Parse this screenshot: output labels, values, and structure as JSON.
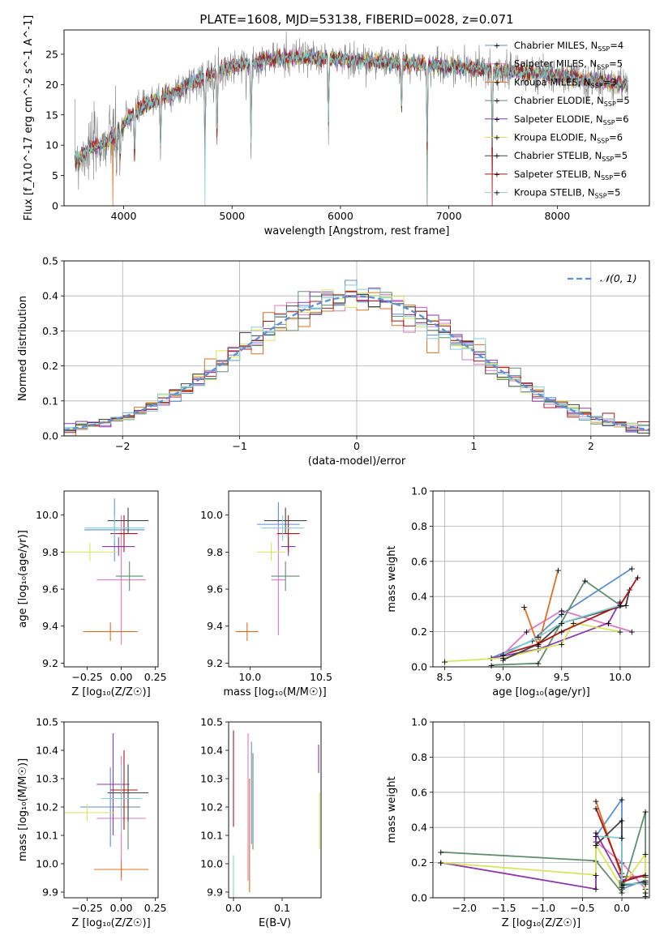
{
  "figure": {
    "title": "PLATE=1608, MJD=53138, FIBERID=0028, z=0.071"
  },
  "colors": {
    "Chabrier MILES": "#5b8fd9",
    "Salpeter MILES": "#e377c2",
    "Kroupa MILES": "#e07020",
    "Chabrier ELODIE": "#5f8f6a",
    "Salpeter ELODIE": "#8e35b0",
    "Kroupa ELODIE": "#d6e85a",
    "Chabrier STELIB": "#444444",
    "Salpeter STELIB": "#b01515",
    "Kroupa STELIB": "#80d0d8",
    "data": "#808080",
    "grid": "#b0b0b0",
    "normal": "#5b8fd9"
  },
  "chart_data": [
    {
      "id": "spectrum",
      "type": "line",
      "xlabel": "wavelength [Angstrom, rest frame]",
      "ylabel": "Flux [f_λ10^-17 erg cm^-2 s^-1 A^-1]",
      "xlim": [
        3450,
        8850
      ],
      "ylim": [
        0,
        29
      ],
      "xticks": [
        4000,
        5000,
        6000,
        7000,
        8000
      ],
      "yticks": [
        0,
        5,
        10,
        15,
        20,
        25
      ],
      "grid": false,
      "legend_position": "right",
      "continuum": [
        [
          3550,
          7.5
        ],
        [
          3700,
          9.5
        ],
        [
          3850,
          10.5
        ],
        [
          3950,
          12.5
        ],
        [
          4100,
          15.5
        ],
        [
          4300,
          17.5
        ],
        [
          4500,
          19
        ],
        [
          4700,
          21
        ],
        [
          5000,
          23
        ],
        [
          5300,
          24
        ],
        [
          5600,
          24.5
        ],
        [
          6000,
          24.2
        ],
        [
          6300,
          23.8
        ],
        [
          6600,
          23.5
        ],
        [
          7000,
          23
        ],
        [
          7500,
          22.2
        ],
        [
          8000,
          21.5
        ],
        [
          8400,
          20.5
        ],
        [
          8650,
          20
        ]
      ],
      "absorption": [
        [
          3934,
          10
        ],
        [
          3968,
          10
        ],
        [
          4101,
          13
        ],
        [
          4340,
          14
        ],
        [
          4750,
          21
        ],
        [
          4861,
          20
        ],
        [
          5175,
          22
        ],
        [
          5890,
          18
        ],
        [
          6563,
          14
        ],
        [
          6800,
          24
        ],
        [
          7400,
          23
        ]
      ],
      "series": [
        {
          "name": "Chabrier MILES",
          "nssp": "4"
        },
        {
          "name": "Salpeter MILES",
          "nssp": "5"
        },
        {
          "name": "Kroupa MILES",
          "nssp": "3"
        },
        {
          "name": "Chabrier ELODIE",
          "nssp": "5"
        },
        {
          "name": "Salpeter ELODIE",
          "nssp": "6"
        },
        {
          "name": "Kroupa ELODIE",
          "nssp": "6"
        },
        {
          "name": "Chabrier STELIB",
          "nssp": "5"
        },
        {
          "name": "Salpeter STELIB",
          "nssp": "6"
        },
        {
          "name": "Kroupa STELIB",
          "nssp": "5"
        }
      ]
    },
    {
      "id": "residuals",
      "type": "histogram",
      "xlabel": "(data-model)/error",
      "ylabel": "Normed distribution",
      "xlim": [
        -2.5,
        2.5
      ],
      "ylim": [
        0,
        0.5
      ],
      "xticks": [
        -2,
        -1,
        0,
        1,
        2
      ],
      "yticks": [
        0.0,
        0.1,
        0.2,
        0.3,
        0.4,
        0.5
      ],
      "grid": true,
      "legend_position": "top-right",
      "legend_label": "𝒩(0, 1)",
      "bin_width": 0.1
    },
    {
      "id": "age_vs_Z",
      "type": "errorbar",
      "xlabel": "Z [log₁₀(Z/Z☉)]",
      "ylabel": "age  [log₁₀(age/yr)]",
      "xlim": [
        -0.42,
        0.27
      ],
      "ylim": [
        9.18,
        10.13
      ],
      "xticks": [
        -0.25,
        0.0,
        0.25
      ],
      "yticks": [
        9.2,
        9.4,
        9.6,
        9.8,
        10.0
      ],
      "grid": false,
      "points": [
        {
          "model": "Chabrier MILES",
          "x": -0.05,
          "xerr": 0.22,
          "y": 9.92,
          "yerr": 0.17
        },
        {
          "model": "Salpeter MILES",
          "x": 0.0,
          "xerr": 0.18,
          "y": 9.65,
          "yerr": 0.35
        },
        {
          "model": "Kroupa MILES",
          "x": -0.08,
          "xerr": 0.2,
          "y": 9.37,
          "yerr": 0.05
        },
        {
          "model": "Chabrier ELODIE",
          "x": 0.06,
          "xerr": 0.1,
          "y": 9.67,
          "yerr": 0.08
        },
        {
          "model": "Salpeter ELODIE",
          "x": -0.02,
          "xerr": 0.12,
          "y": 9.83,
          "yerr": 0.05
        },
        {
          "model": "Kroupa ELODIE",
          "x": -0.23,
          "xerr": 0.2,
          "y": 9.8,
          "yerr": 0.05
        },
        {
          "model": "Chabrier STELIB",
          "x": 0.05,
          "xerr": 0.15,
          "y": 9.97,
          "yerr": 0.07
        },
        {
          "model": "Salpeter STELIB",
          "x": 0.02,
          "xerr": 0.1,
          "y": 9.9,
          "yerr": 0.1
        },
        {
          "model": "Kroupa STELIB",
          "x": -0.05,
          "xerr": 0.22,
          "y": 9.93,
          "yerr": 0.07
        }
      ]
    },
    {
      "id": "age_vs_mass",
      "type": "errorbar",
      "xlabel": "mass [log₁₀(M/M☉)]",
      "ylabel": "",
      "xlim": [
        9.85,
        10.5
      ],
      "ylim": [
        9.18,
        10.13
      ],
      "xticks": [
        10.0,
        10.5
      ],
      "yticks": [
        9.2,
        9.4,
        9.6,
        9.8,
        10.0
      ],
      "grid": false,
      "points": [
        {
          "model": "Chabrier MILES",
          "x": 10.2,
          "xerr": 0.15,
          "y": 9.95,
          "yerr": 0.12
        },
        {
          "model": "Salpeter MILES",
          "x": 10.2,
          "xerr": 0.05,
          "y": 9.65,
          "yerr": 0.3
        },
        {
          "model": "Kroupa MILES",
          "x": 9.98,
          "xerr": 0.08,
          "y": 9.37,
          "yerr": 0.05
        },
        {
          "model": "Chabrier ELODIE",
          "x": 10.25,
          "xerr": 0.1,
          "y": 9.67,
          "yerr": 0.08
        },
        {
          "model": "Salpeter ELODIE",
          "x": 10.27,
          "xerr": 0.05,
          "y": 9.83,
          "yerr": 0.05
        },
        {
          "model": "Kroupa ELODIE",
          "x": 10.15,
          "xerr": 0.1,
          "y": 9.8,
          "yerr": 0.05
        },
        {
          "model": "Chabrier STELIB",
          "x": 10.25,
          "xerr": 0.15,
          "y": 9.97,
          "yerr": 0.07
        },
        {
          "model": "Salpeter STELIB",
          "x": 10.27,
          "xerr": 0.08,
          "y": 9.9,
          "yerr": 0.1
        },
        {
          "model": "Kroupa STELIB",
          "x": 10.23,
          "xerr": 0.15,
          "y": 9.93,
          "yerr": 0.07
        }
      ]
    },
    {
      "id": "weight_vs_age",
      "type": "line",
      "xlabel": "age  [log₁₀(age/yr)]",
      "ylabel": "mass weight",
      "xlim": [
        8.4,
        10.25
      ],
      "ylim": [
        0,
        1.0
      ],
      "xticks": [
        8.5,
        9.0,
        9.5,
        10.0
      ],
      "yticks": [
        0.0,
        0.2,
        0.4,
        0.6,
        0.8,
        1.0
      ],
      "grid": true,
      "series": [
        {
          "name": "Chabrier MILES",
          "points": [
            [
              8.9,
              0.05
            ],
            [
              9.25,
              0.15
            ],
            [
              9.5,
              0.3
            ],
            [
              10.1,
              0.56
            ]
          ]
        },
        {
          "name": "Salpeter MILES",
          "points": [
            [
              9.0,
              0.07
            ],
            [
              9.2,
              0.2
            ],
            [
              9.5,
              0.32
            ],
            [
              10.1,
              0.2
            ]
          ]
        },
        {
          "name": "Kroupa MILES",
          "points": [
            [
              9.18,
              0.34
            ],
            [
              9.3,
              0.12
            ],
            [
              9.47,
              0.55
            ]
          ]
        },
        {
          "name": "Chabrier ELODIE",
          "points": [
            [
              8.9,
              0.01
            ],
            [
              9.3,
              0.02
            ],
            [
              9.7,
              0.49
            ],
            [
              10.0,
              0.35
            ]
          ]
        },
        {
          "name": "Salpeter ELODIE",
          "points": [
            [
              8.9,
              0.05
            ],
            [
              9.3,
              0.1
            ],
            [
              9.9,
              0.25
            ],
            [
              10.0,
              0.37
            ]
          ]
        },
        {
          "name": "Kroupa ELODIE",
          "points": [
            [
              8.5,
              0.03
            ],
            [
              9.0,
              0.05
            ],
            [
              9.5,
              0.13
            ],
            [
              9.6,
              0.25
            ],
            [
              10.0,
              0.2
            ]
          ]
        },
        {
          "name": "Chabrier STELIB",
          "points": [
            [
              9.0,
              0.04
            ],
            [
              9.3,
              0.13
            ],
            [
              9.5,
              0.25
            ],
            [
              10.05,
              0.35
            ],
            [
              10.08,
              0.44
            ]
          ]
        },
        {
          "name": "Salpeter STELIB",
          "points": [
            [
              9.0,
              0.07
            ],
            [
              9.3,
              0.13
            ],
            [
              9.5,
              0.2
            ],
            [
              10.0,
              0.35
            ],
            [
              10.15,
              0.51
            ]
          ]
        },
        {
          "name": "Kroupa STELIB",
          "points": [
            [
              9.0,
              0.07
            ],
            [
              9.3,
              0.17
            ],
            [
              9.5,
              0.25
            ],
            [
              10.0,
              0.35
            ]
          ]
        }
      ]
    },
    {
      "id": "mass_vs_Z",
      "type": "errorbar",
      "xlabel": "Z [log₁₀(Z/Z☉)]",
      "ylabel": "mass [log₁₀(M/M☉)]",
      "xlim": [
        -0.42,
        0.27
      ],
      "ylim": [
        9.88,
        10.5
      ],
      "xticks": [
        -0.25,
        0.0,
        0.25
      ],
      "yticks": [
        9.9,
        10.0,
        10.1,
        10.2,
        10.3,
        10.4,
        10.5
      ],
      "grid": false,
      "points": [
        {
          "model": "Chabrier MILES",
          "x": -0.08,
          "xerr": 0.22,
          "y": 10.2,
          "yerr": 0.14
        },
        {
          "model": "Salpeter MILES",
          "x": 0.0,
          "xerr": 0.18,
          "y": 10.16,
          "yerr": 0.22
        },
        {
          "model": "Kroupa MILES",
          "x": 0.0,
          "xerr": 0.2,
          "y": 9.98,
          "yerr": 0.03
        },
        {
          "model": "Chabrier ELODIE",
          "x": 0.05,
          "xerr": 0.08,
          "y": 10.2,
          "yerr": 0.15
        },
        {
          "model": "Salpeter ELODIE",
          "x": -0.06,
          "xerr": 0.12,
          "y": 10.28,
          "yerr": 0.18
        },
        {
          "model": "Kroupa ELODIE",
          "x": -0.25,
          "xerr": 0.2,
          "y": 10.18,
          "yerr": 0.03
        },
        {
          "model": "Chabrier STELIB",
          "x": 0.05,
          "xerr": 0.15,
          "y": 10.25,
          "yerr": 0.1
        },
        {
          "model": "Salpeter STELIB",
          "x": 0.02,
          "xerr": 0.1,
          "y": 10.26,
          "yerr": 0.14
        },
        {
          "model": "Kroupa STELIB",
          "x": 0.0,
          "xerr": 0.15,
          "y": 10.23,
          "yerr": 0.12
        }
      ]
    },
    {
      "id": "mass_vs_ebv",
      "type": "errorbar",
      "xlabel": "E(B-V)",
      "ylabel": "",
      "xlim": [
        -0.01,
        0.18
      ],
      "ylim": [
        9.88,
        10.5
      ],
      "xticks": [
        0.0,
        0.1
      ],
      "yticks": [
        9.9,
        10.0,
        10.1,
        10.2,
        10.3,
        10.4,
        10.5
      ],
      "grid": false,
      "points": [
        {
          "model": "Salpeter STELIB",
          "x": 0.0,
          "xerr": 0.0,
          "y": 10.3,
          "yerr": 0.17
        },
        {
          "model": "Kroupa STELIB",
          "x": 0.0,
          "xerr": 0.0,
          "y": 9.95,
          "yerr": 0.08
        },
        {
          "model": "Salpeter MILES",
          "x": 0.03,
          "xerr": 0.0,
          "y": 10.2,
          "yerr": 0.26
        },
        {
          "model": "Kroupa MILES",
          "x": 0.033,
          "xerr": 0.0,
          "y": 10.1,
          "yerr": 0.2
        },
        {
          "model": "Chabrier MILES",
          "x": 0.037,
          "xerr": 0.0,
          "y": 10.25,
          "yerr": 0.18
        },
        {
          "model": "Chabrier ELODIE",
          "x": 0.04,
          "xerr": 0.0,
          "y": 10.22,
          "yerr": 0.17
        },
        {
          "model": "Salpeter ELODIE",
          "x": 0.175,
          "xerr": 0.0,
          "y": 10.37,
          "yerr": 0.05
        },
        {
          "model": "Kroupa ELODIE",
          "x": 0.177,
          "xerr": 0.0,
          "y": 10.15,
          "yerr": 0.1
        }
      ]
    },
    {
      "id": "weight_vs_Z",
      "type": "line",
      "xlabel": "Z [log₁₀(Z/Z☉)]",
      "ylabel": "mass weight",
      "xlim": [
        -2.4,
        0.35
      ],
      "ylim": [
        0,
        1.0
      ],
      "xticks": [
        -2.0,
        -1.5,
        -1.0,
        -0.5,
        0.0
      ],
      "yticks": [
        0.0,
        0.2,
        0.4,
        0.6,
        0.8,
        1.0
      ],
      "grid": true,
      "series": [
        {
          "name": "Chabrier MILES",
          "points": [
            [
              -0.33,
              0.35
            ],
            [
              0.0,
              0.56
            ],
            [
              0.0,
              0.05
            ],
            [
              0.3,
              0.1
            ]
          ]
        },
        {
          "name": "Salpeter MILES",
          "points": [
            [
              -0.33,
              0.32
            ],
            [
              0.0,
              0.2
            ],
            [
              0.3,
              0.05
            ]
          ]
        },
        {
          "name": "Kroupa MILES",
          "points": [
            [
              -0.33,
              0.55
            ],
            [
              0.0,
              0.12
            ],
            [
              0.3,
              0.12
            ]
          ]
        },
        {
          "name": "Chabrier ELODIE",
          "points": [
            [
              -2.3,
              0.26
            ],
            [
              -0.33,
              0.21
            ],
            [
              0.0,
              0.03
            ],
            [
              0.3,
              0.49
            ],
            [
              0.3,
              0.01
            ]
          ]
        },
        {
          "name": "Salpeter ELODIE",
          "points": [
            [
              -2.3,
              0.2
            ],
            [
              -0.33,
              0.05
            ],
            [
              -0.33,
              0.37
            ],
            [
              0.0,
              0.1
            ],
            [
              0.3,
              0.13
            ]
          ]
        },
        {
          "name": "Kroupa ELODIE",
          "points": [
            [
              -2.3,
              0.2
            ],
            [
              -0.33,
              0.13
            ],
            [
              -0.33,
              0.3
            ],
            [
              0.0,
              0.06
            ],
            [
              0.3,
              0.25
            ],
            [
              0.3,
              0.03
            ]
          ]
        },
        {
          "name": "Chabrier STELIB",
          "points": [
            [
              -0.33,
              0.3
            ],
            [
              0.0,
              0.44
            ],
            [
              0.0,
              0.07
            ],
            [
              0.3,
              0.09
            ]
          ]
        },
        {
          "name": "Salpeter STELIB",
          "points": [
            [
              -0.33,
              0.51
            ],
            [
              0.0,
              0.14
            ],
            [
              0.0,
              0.09
            ],
            [
              0.3,
              0.13
            ]
          ]
        },
        {
          "name": "Kroupa STELIB",
          "points": [
            [
              -0.33,
              0.35
            ],
            [
              0.0,
              0.34
            ],
            [
              0.0,
              0.08
            ],
            [
              0.3,
              0.08
            ]
          ]
        }
      ]
    }
  ]
}
